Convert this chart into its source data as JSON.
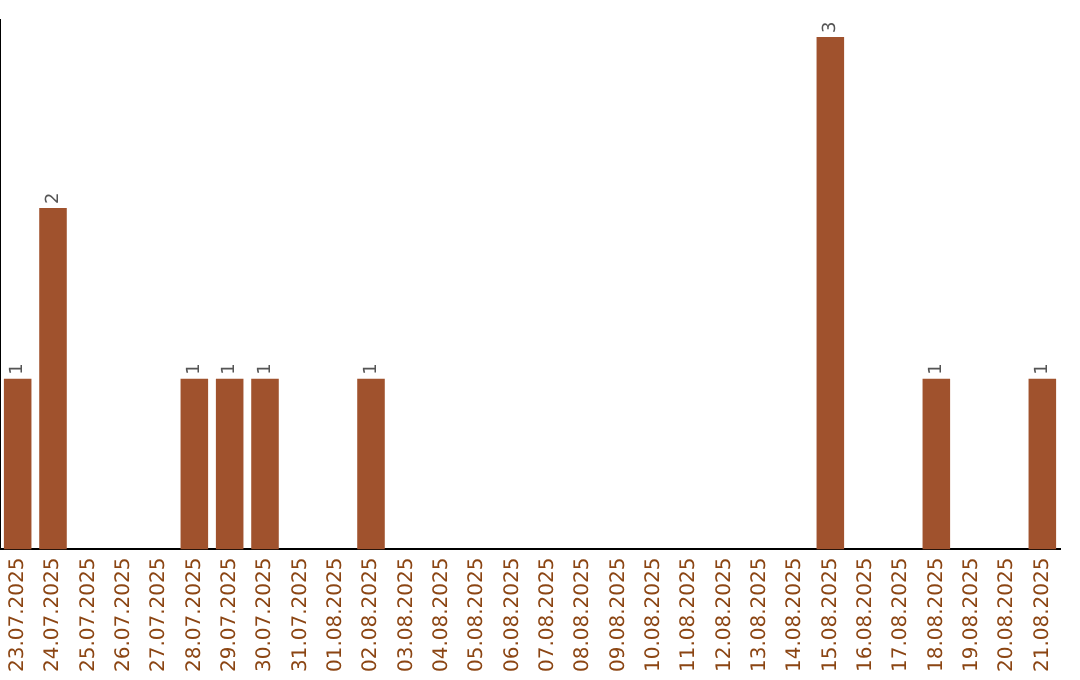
{
  "chart_data": {
    "type": "bar",
    "categories": [
      "23.07.2025",
      "24.07.2025",
      "25.07.2025",
      "26.07.2025",
      "27.07.2025",
      "28.07.2025",
      "29.07.2025",
      "30.07.2025",
      "31.07.2025",
      "01.08.2025",
      "02.08.2025",
      "03.08.2025",
      "04.08.2025",
      "05.08.2025",
      "06.08.2025",
      "07.08.2025",
      "08.08.2025",
      "09.08.2025",
      "10.08.2025",
      "11.08.2025",
      "12.08.2025",
      "13.08.2025",
      "14.08.2025",
      "15.08.2025",
      "16.08.2025",
      "17.08.2025",
      "18.08.2025",
      "19.08.2025",
      "20.08.2025",
      "21.08.2025"
    ],
    "values": [
      1,
      2,
      null,
      null,
      null,
      1,
      1,
      1,
      null,
      null,
      1,
      null,
      null,
      null,
      null,
      null,
      null,
      null,
      null,
      null,
      null,
      null,
      null,
      3,
      null,
      null,
      1,
      null,
      null,
      1
    ],
    "color": "#a0522d",
    "ylim": [
      0,
      3.1
    ],
    "data_labels": true,
    "grid": false,
    "legend": false,
    "tick_labels": "x"
  }
}
